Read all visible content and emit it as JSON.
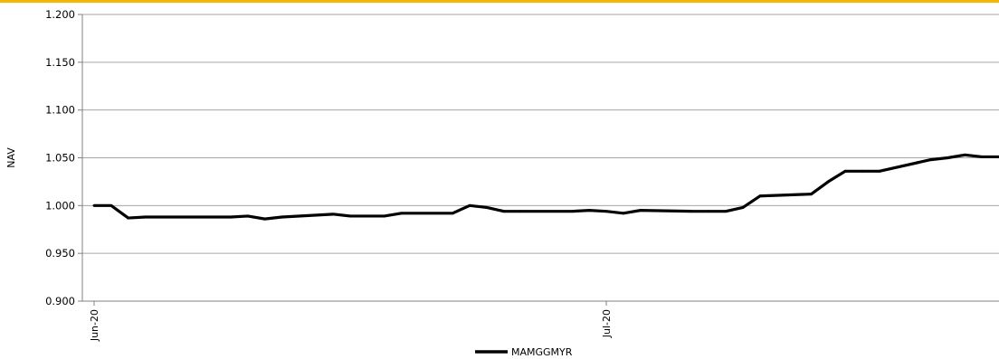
{
  "chart_data": {
    "type": "line",
    "title": "",
    "xlabel": "",
    "ylabel": "NAV",
    "ylim": [
      0.9,
      1.2
    ],
    "y_ticks": [
      "0.900",
      "0.950",
      "1.000",
      "1.050",
      "1.100",
      "1.150",
      "1.200"
    ],
    "x_ticks": [
      "Jun-20",
      "Jul-20"
    ],
    "grid": "horizontal",
    "legend_position": "bottom",
    "colors": {
      "series": "#000000",
      "grid": "#a6a6a6",
      "accent": "#f5b800"
    },
    "series": [
      {
        "name": "MAMGGMYR",
        "points": [
          [
            "2020-06-01",
            1.0
          ],
          [
            "2020-06-02",
            1.0
          ],
          [
            "2020-06-03",
            0.987
          ],
          [
            "2020-06-04",
            0.988
          ],
          [
            "2020-06-05",
            0.988
          ],
          [
            "2020-06-08",
            0.988
          ],
          [
            "2020-06-09",
            0.988
          ],
          [
            "2020-06-10",
            0.989
          ],
          [
            "2020-06-11",
            0.986
          ],
          [
            "2020-06-12",
            0.988
          ],
          [
            "2020-06-15",
            0.991
          ],
          [
            "2020-06-16",
            0.989
          ],
          [
            "2020-06-17",
            0.989
          ],
          [
            "2020-06-18",
            0.989
          ],
          [
            "2020-06-19",
            0.992
          ],
          [
            "2020-06-22",
            0.992
          ],
          [
            "2020-06-23",
            1.0
          ],
          [
            "2020-06-24",
            0.998
          ],
          [
            "2020-06-25",
            0.994
          ],
          [
            "2020-06-26",
            0.994
          ],
          [
            "2020-06-29",
            0.994
          ],
          [
            "2020-06-30",
            0.995
          ],
          [
            "2020-07-01",
            0.994
          ],
          [
            "2020-07-02",
            0.992
          ],
          [
            "2020-07-03",
            0.995
          ],
          [
            "2020-07-06",
            0.994
          ],
          [
            "2020-07-07",
            0.994
          ],
          [
            "2020-07-08",
            0.994
          ],
          [
            "2020-07-09",
            0.998
          ],
          [
            "2020-07-10",
            1.01
          ],
          [
            "2020-07-13",
            1.012
          ],
          [
            "2020-07-14",
            1.025
          ],
          [
            "2020-07-15",
            1.036
          ],
          [
            "2020-07-16",
            1.036
          ],
          [
            "2020-07-17",
            1.036
          ],
          [
            "2020-07-20",
            1.048
          ],
          [
            "2020-07-21",
            1.05
          ],
          [
            "2020-07-22",
            1.053
          ],
          [
            "2020-07-23",
            1.051
          ],
          [
            "2020-07-24",
            1.051
          ]
        ]
      }
    ]
  }
}
